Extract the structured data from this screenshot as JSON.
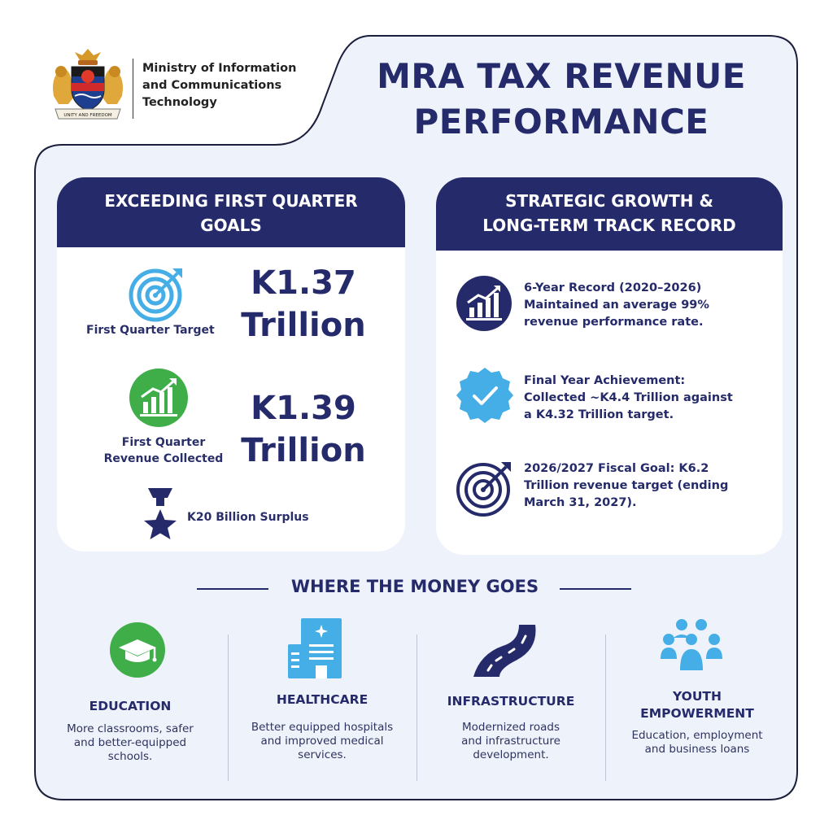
{
  "header": {
    "ministry_line1": "Ministry of Information",
    "ministry_line2": "and Communications",
    "ministry_line3": "Technology",
    "seal_motto": "UNITY AND FREEDOM",
    "title_line1": "MRA TAX REVENUE",
    "title_line2": "PERFORMANCE"
  },
  "quarter_card": {
    "heading_line1": "EXCEEDING FIRST QUARTER",
    "heading_line2": "GOALS",
    "target_label": "First Quarter Target",
    "target_amount": "K1.37",
    "target_unit": "Trillion",
    "collected_label_line1": "First Quarter",
    "collected_label_line2": "Revenue Collected",
    "collected_amount": "K1.39",
    "collected_unit": "Trillion",
    "surplus_label": "K20 Billion Surplus"
  },
  "growth_card": {
    "heading_line1": "STRATEGIC GROWTH &",
    "heading_line2": "LONG-TERM TRACK RECORD",
    "items": [
      {
        "icon": "growth-chart-icon",
        "line1": "6-Year Record (2020–2026)",
        "line2": "Maintained an average 99%",
        "line3": "revenue performance rate."
      },
      {
        "icon": "verified-badge-icon",
        "line1": "Final Year Achievement:",
        "line2": "Collected ~K4.4 Trillion against",
        "line3": "a K4.32 Trillion target."
      },
      {
        "icon": "target-icon",
        "line1": "2026/2027 Fiscal Goal: K6.2",
        "line2": "Trillion revenue target (ending",
        "line3": "March 31, 2027)."
      }
    ]
  },
  "money": {
    "section_title": "WHERE THE MONEY GOES",
    "categories": [
      {
        "icon": "graduation-cap-icon",
        "title_line1": "EDUCATION",
        "title_line2": "",
        "desc_line1": "More classrooms, safer",
        "desc_line2": "and better-equipped",
        "desc_line3": "schools."
      },
      {
        "icon": "hospital-icon",
        "title_line1": "HEALTHCARE",
        "title_line2": "",
        "desc_line1": "Better equipped hospitals",
        "desc_line2": "and improved medical",
        "desc_line3": "services."
      },
      {
        "icon": "road-icon",
        "title_line1": "INFRASTRUCTURE",
        "title_line2": "",
        "desc_line1": "Modernized roads",
        "desc_line2": "and infrastructure",
        "desc_line3": "development."
      },
      {
        "icon": "people-group-icon",
        "title_line1": "YOUTH",
        "title_line2": "EMPOWERMENT",
        "desc_line1": "Education, employment",
        "desc_line2": "and business loans",
        "desc_line3": ""
      }
    ]
  },
  "colors": {
    "navy": "#252a6a",
    "panel": "#eef2fb",
    "sky": "#45aee6",
    "green": "#3fae49"
  }
}
